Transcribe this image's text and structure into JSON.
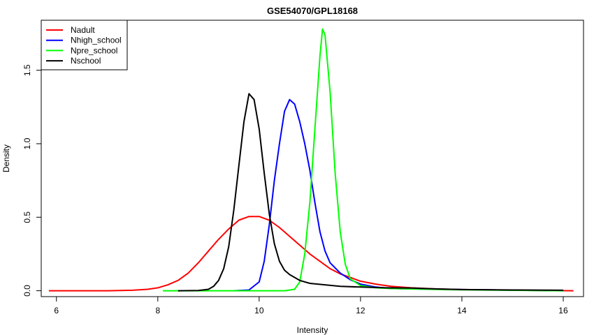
{
  "chart_data": {
    "type": "line",
    "title": "GSE54070/GPL18168",
    "xlabel": "Intensity",
    "ylabel": "Density",
    "xlim": [
      5.7,
      16.4
    ],
    "ylim": [
      -0.04,
      1.84
    ],
    "x_ticks": [
      6,
      8,
      10,
      12,
      14,
      16
    ],
    "x_tick_labels": [
      "6",
      "8",
      "10",
      "12",
      "14",
      "16"
    ],
    "y_ticks": [
      0.0,
      0.5,
      1.0,
      1.5
    ],
    "y_tick_labels": [
      "0.0",
      "0.5",
      "1.0",
      "1.5"
    ],
    "grid": false,
    "legend_position": "top-left",
    "series": [
      {
        "name": "Nadult",
        "color": "#ff0000",
        "points": [
          [
            5.85,
            0.0
          ],
          [
            7.0,
            0.0
          ],
          [
            7.5,
            0.003
          ],
          [
            7.8,
            0.01
          ],
          [
            8.0,
            0.02
          ],
          [
            8.2,
            0.04
          ],
          [
            8.4,
            0.07
          ],
          [
            8.6,
            0.12
          ],
          [
            8.8,
            0.19
          ],
          [
            9.0,
            0.27
          ],
          [
            9.2,
            0.35
          ],
          [
            9.4,
            0.42
          ],
          [
            9.6,
            0.48
          ],
          [
            9.8,
            0.505
          ],
          [
            10.0,
            0.505
          ],
          [
            10.2,
            0.48
          ],
          [
            10.4,
            0.43
          ],
          [
            10.6,
            0.37
          ],
          [
            10.8,
            0.31
          ],
          [
            11.0,
            0.25
          ],
          [
            11.2,
            0.2
          ],
          [
            11.4,
            0.15
          ],
          [
            11.6,
            0.115
          ],
          [
            11.8,
            0.09
          ],
          [
            12.0,
            0.065
          ],
          [
            12.3,
            0.045
          ],
          [
            12.6,
            0.03
          ],
          [
            13.0,
            0.02
          ],
          [
            13.5,
            0.012
          ],
          [
            14.0,
            0.008
          ],
          [
            15.0,
            0.004
          ],
          [
            16.2,
            0.0
          ]
        ]
      },
      {
        "name": "Nhigh_school",
        "color": "#0000ff",
        "points": [
          [
            9.5,
            0.0
          ],
          [
            9.8,
            0.005
          ],
          [
            10.0,
            0.06
          ],
          [
            10.1,
            0.2
          ],
          [
            10.2,
            0.45
          ],
          [
            10.3,
            0.75
          ],
          [
            10.4,
            1.0
          ],
          [
            10.5,
            1.22
          ],
          [
            10.6,
            1.3
          ],
          [
            10.7,
            1.27
          ],
          [
            10.8,
            1.15
          ],
          [
            10.9,
            1.0
          ],
          [
            11.0,
            0.82
          ],
          [
            11.1,
            0.6
          ],
          [
            11.2,
            0.4
          ],
          [
            11.3,
            0.27
          ],
          [
            11.4,
            0.19
          ],
          [
            11.6,
            0.12
          ],
          [
            11.8,
            0.075
          ],
          [
            12.0,
            0.045
          ],
          [
            12.3,
            0.025
          ],
          [
            12.6,
            0.015
          ],
          [
            13.0,
            0.012
          ],
          [
            14.0,
            0.008
          ],
          [
            16.0,
            0.0
          ]
        ]
      },
      {
        "name": "Npre_school",
        "color": "#00ff00",
        "points": [
          [
            8.1,
            0.0
          ],
          [
            10.5,
            0.0
          ],
          [
            10.7,
            0.01
          ],
          [
            10.8,
            0.06
          ],
          [
            10.9,
            0.25
          ],
          [
            11.0,
            0.6
          ],
          [
            11.1,
            1.1
          ],
          [
            11.2,
            1.6
          ],
          [
            11.25,
            1.78
          ],
          [
            11.3,
            1.74
          ],
          [
            11.4,
            1.35
          ],
          [
            11.5,
            0.8
          ],
          [
            11.6,
            0.4
          ],
          [
            11.7,
            0.18
          ],
          [
            11.8,
            0.08
          ],
          [
            12.0,
            0.035
          ],
          [
            12.3,
            0.02
          ],
          [
            12.6,
            0.015
          ],
          [
            13.0,
            0.012
          ],
          [
            14.0,
            0.006
          ],
          [
            16.0,
            0.0
          ]
        ]
      },
      {
        "name": "Nschool",
        "color": "#000000",
        "points": [
          [
            8.4,
            0.0
          ],
          [
            8.8,
            0.002
          ],
          [
            9.0,
            0.01
          ],
          [
            9.1,
            0.03
          ],
          [
            9.2,
            0.07
          ],
          [
            9.3,
            0.15
          ],
          [
            9.4,
            0.3
          ],
          [
            9.5,
            0.55
          ],
          [
            9.6,
            0.85
          ],
          [
            9.7,
            1.15
          ],
          [
            9.8,
            1.34
          ],
          [
            9.9,
            1.3
          ],
          [
            10.0,
            1.1
          ],
          [
            10.1,
            0.8
          ],
          [
            10.2,
            0.52
          ],
          [
            10.3,
            0.32
          ],
          [
            10.4,
            0.2
          ],
          [
            10.5,
            0.14
          ],
          [
            10.6,
            0.11
          ],
          [
            10.8,
            0.07
          ],
          [
            11.0,
            0.05
          ],
          [
            11.3,
            0.04
          ],
          [
            11.6,
            0.03
          ],
          [
            12.0,
            0.025
          ],
          [
            12.5,
            0.02
          ],
          [
            13.0,
            0.018
          ],
          [
            13.5,
            0.012
          ],
          [
            14.0,
            0.008
          ],
          [
            15.0,
            0.005
          ],
          [
            16.0,
            0.003
          ]
        ]
      }
    ]
  }
}
